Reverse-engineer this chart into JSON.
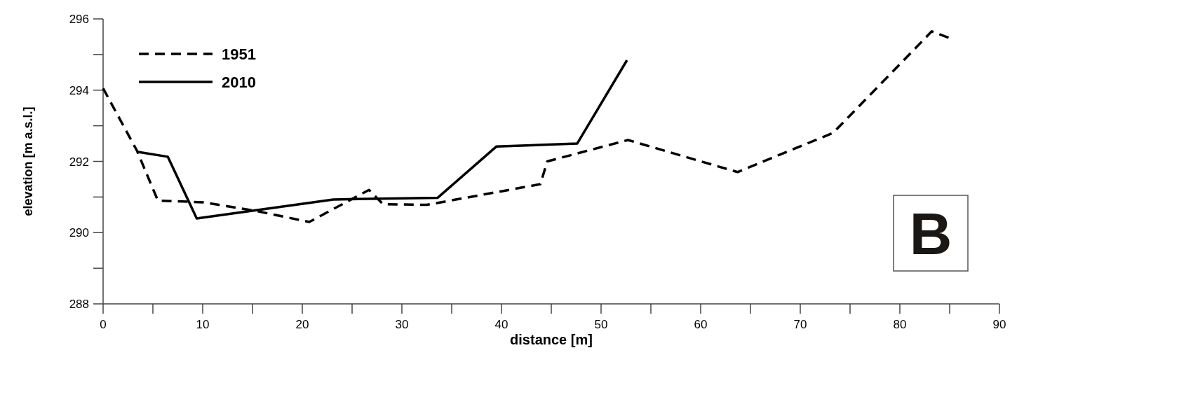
{
  "chart_data": {
    "type": "line",
    "xlabel": "distance [m]",
    "ylabel": "elevation [m a.s.l.]",
    "annotations": [
      "B"
    ],
    "xlim": [
      0,
      90
    ],
    "ylim": [
      288,
      296
    ],
    "xticks": [
      0,
      {
        "value": 5,
        "label": null
      },
      10,
      {
        "value": 15,
        "label": null
      },
      20,
      {
        "value": 25,
        "label": null
      },
      30,
      {
        "value": 35,
        "label": null
      },
      40,
      {
        "value": 45,
        "label": null
      },
      50,
      {
        "value": 55,
        "label": null
      },
      60,
      {
        "value": 65,
        "label": null
      },
      70,
      {
        "value": 75,
        "label": null
      },
      80,
      {
        "value": 85,
        "label": null
      },
      90
    ],
    "yticks": [
      288,
      {
        "value": 289,
        "label": null
      },
      290,
      {
        "value": 291,
        "label": null
      },
      292,
      {
        "value": 293,
        "label": null
      },
      294,
      {
        "value": 295,
        "label": null
      },
      296
    ],
    "grid": false,
    "legend": "top left",
    "marker": "none",
    "series": [
      {
        "name": "1951",
        "color": "#000000",
        "line_style": "dashed",
        "x": [
          0,
          3.4,
          5.5,
          10.1,
          15.5,
          20.7,
          26.7,
          28.1,
          32.5,
          43.9,
          44.6,
          52.7,
          63.7,
          73.3,
          83.2,
          85.1
        ],
        "values": [
          294.05,
          292.3,
          290.9,
          290.85,
          290.6,
          290.3,
          291.2,
          290.8,
          290.78,
          291.36,
          292.0,
          292.6,
          291.7,
          292.8,
          295.65,
          295.45
        ]
      },
      {
        "name": "2010",
        "color": "#000000",
        "line_style": "solid",
        "x": [
          3.4,
          6.5,
          9.4,
          23.1,
          33.6,
          39.5,
          47.6,
          52.6
        ],
        "values": [
          292.27,
          292.13,
          290.4,
          290.93,
          290.98,
          292.42,
          292.5,
          294.84
        ]
      }
    ]
  }
}
